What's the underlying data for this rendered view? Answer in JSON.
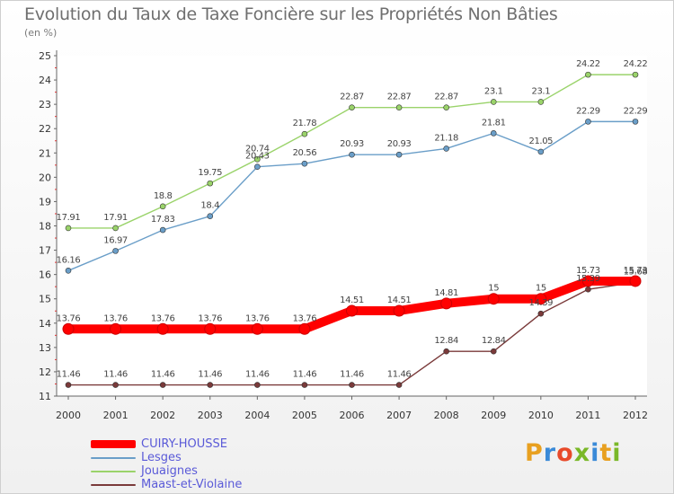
{
  "title": "Evolution du Taux de Taxe Foncière sur les Propriétés Non Bâties",
  "subtitle": "(en %)",
  "logo": {
    "letters": [
      "P",
      "r",
      "o",
      "x",
      "i",
      "t",
      "i"
    ],
    "colors": [
      "#e8a020",
      "#3a8ad8",
      "#e84a2a",
      "#7ab828",
      "#3a8ad8",
      "#e8a020",
      "#7ab828"
    ]
  },
  "chart_data": {
    "type": "line",
    "categories": [
      "2000",
      "2001",
      "2002",
      "2003",
      "2004",
      "2005",
      "2006",
      "2007",
      "2008",
      "2009",
      "2010",
      "2011",
      "2012"
    ],
    "ylim": [
      11,
      25
    ],
    "yticks": [
      "11",
      "12",
      "13",
      "14",
      "15",
      "16",
      "17",
      "18",
      "19",
      "20",
      "21",
      "22",
      "23",
      "24",
      "25"
    ],
    "grid": false,
    "legend_position": "bottom-left",
    "series": [
      {
        "name": "CUIRY-HOUSSE",
        "color": "#ff0000",
        "values": [
          13.76,
          13.76,
          13.76,
          13.76,
          13.76,
          13.76,
          14.51,
          14.51,
          14.81,
          15,
          15,
          15.73,
          15.73
        ],
        "labels": [
          "13.76",
          "13.76",
          "13.76",
          "13.76",
          "13.76",
          "13.76",
          "14.51",
          "14.51",
          "14.81",
          "15",
          "15",
          "15.73",
          "15.73"
        ]
      },
      {
        "name": "Lesges",
        "color": "#6a9ec8",
        "values": [
          16.16,
          16.97,
          17.83,
          18.4,
          20.43,
          20.56,
          20.93,
          20.93,
          21.18,
          21.81,
          21.05,
          22.29,
          22.29
        ],
        "labels": [
          "16.16",
          "16.97",
          "17.83",
          "18.4",
          "20.43",
          "20.56",
          "20.93",
          "20.93",
          "21.18",
          "21.81",
          "21.05",
          "22.29",
          "22.29"
        ]
      },
      {
        "name": "Jouaignes",
        "color": "#9ad36a",
        "values": [
          17.91,
          17.91,
          18.8,
          19.75,
          20.74,
          21.78,
          22.87,
          22.87,
          22.87,
          23.1,
          23.1,
          24.22,
          24.22
        ],
        "labels": [
          "17.91",
          "17.91",
          "18.8",
          "19.75",
          "20.74",
          "21.78",
          "22.87",
          "22.87",
          "22.87",
          "23.1",
          "23.1",
          "24.22",
          "24.22"
        ]
      },
      {
        "name": "Maast-et-Violaine",
        "color": "#7a3a3a",
        "values": [
          11.46,
          11.46,
          11.46,
          11.46,
          11.46,
          11.46,
          11.46,
          11.46,
          12.84,
          12.84,
          14.39,
          15.39,
          15.68
        ],
        "labels": [
          "11.46",
          "11.46",
          "11.46",
          "11.46",
          "11.46",
          "11.46",
          "11.46",
          "11.46",
          "12.84",
          "12.84",
          "14.39",
          "15.39",
          "15.68"
        ]
      }
    ]
  }
}
